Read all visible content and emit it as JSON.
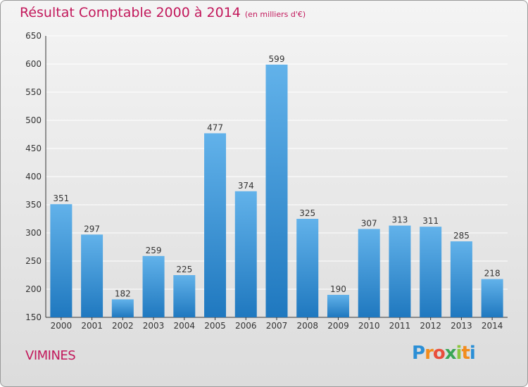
{
  "chart_data": {
    "type": "bar",
    "title": "Résultat Comptable 2000 à 2014",
    "subtitle": "(en milliers d'€)",
    "xlabel": "",
    "ylabel": "",
    "categories": [
      "2000",
      "2001",
      "2002",
      "2003",
      "2004",
      "2005",
      "2006",
      "2007",
      "2008",
      "2009",
      "2010",
      "2011",
      "2012",
      "2013",
      "2014"
    ],
    "values": [
      351,
      297,
      182,
      259,
      225,
      477,
      374,
      599,
      325,
      190,
      307,
      313,
      311,
      285,
      218
    ],
    "ylim": [
      150,
      650
    ],
    "yticks": [
      150,
      200,
      250,
      300,
      350,
      400,
      450,
      500,
      550,
      600,
      650
    ],
    "grid": true
  },
  "commune": "VIMINES",
  "logo": {
    "letters": [
      "P",
      "r",
      "o",
      "x",
      "i",
      "t",
      "i"
    ],
    "colors": [
      "#2b8fd6",
      "#f28c1c",
      "#e94e3c",
      "#3aa655",
      "#8cc63f",
      "#f28c1c",
      "#2b8fd6"
    ]
  },
  "colors": {
    "title": "#c2185b",
    "bar_light": "#62b2ea",
    "bar_dark": "#1f78bf",
    "grid": "#ffffff"
  }
}
